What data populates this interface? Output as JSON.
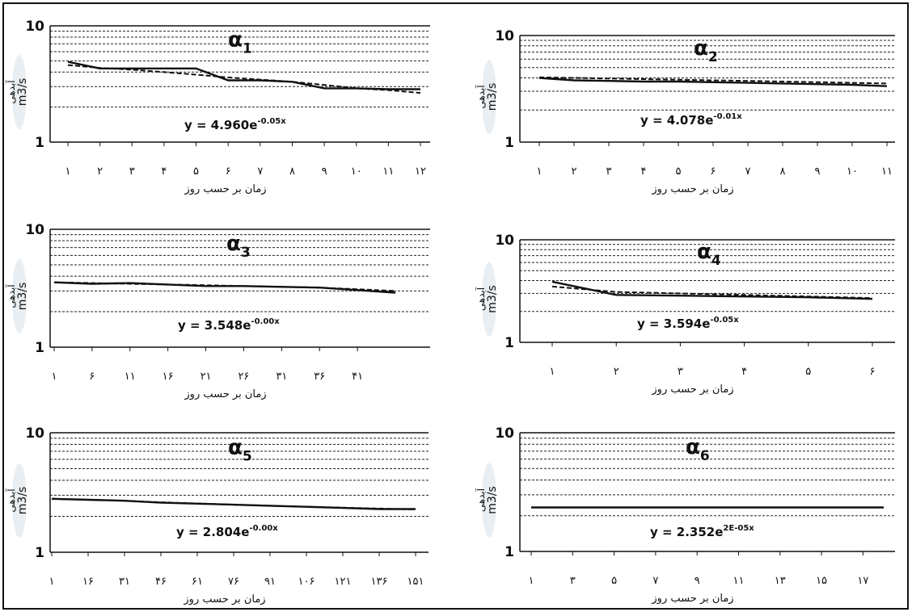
{
  "figure": {
    "colors": {
      "line": "#111111",
      "grid": "#222222",
      "watermark": "#e8eef2"
    }
  },
  "chart_data": [
    {
      "type": "line",
      "title": "α1",
      "ylabel_fa": "آبدهی",
      "ylabel_unit": "m3/s",
      "xlabel": "زمان بر حسب روز",
      "yscale": "log",
      "ylim": [
        1,
        10
      ],
      "ytick_labels": [
        "10",
        "1"
      ],
      "x": [
        1,
        2,
        3,
        4,
        5,
        6,
        7,
        8,
        9,
        10,
        11,
        12
      ],
      "xtick_labels": [
        "۱",
        "۲",
        "۳",
        "۴",
        "۵",
        "۶",
        "۷",
        "۸",
        "۹",
        "۱۰",
        "۱۱",
        "۱۲"
      ],
      "equation": "y = 4.960e",
      "exponent": "-0.05x",
      "series": [
        {
          "style": "solid",
          "values": [
            4.9,
            4.3,
            4.3,
            4.3,
            4.3,
            3.4,
            3.4,
            3.3,
            2.9,
            2.9,
            2.85,
            2.85
          ]
        },
        {
          "style": "dashed",
          "values": [
            4.6,
            4.35,
            4.2,
            4.0,
            3.8,
            3.6,
            3.45,
            3.3,
            3.1,
            2.9,
            2.8,
            2.65
          ]
        }
      ]
    },
    {
      "type": "line",
      "title": "α2",
      "ylabel_fa": "آبدهی",
      "ylabel_unit": "m3/s",
      "xlabel": "زمان بر حسب روز",
      "yscale": "log",
      "ylim": [
        1,
        10
      ],
      "ytick_labels": [
        "10",
        "1"
      ],
      "x": [
        1,
        2,
        3,
        4,
        5,
        6,
        7,
        8,
        9,
        10,
        11
      ],
      "xtick_labels": [
        "۱",
        "۲",
        "۳",
        "۴",
        "۵",
        "۶",
        "۷",
        "۸",
        "۹",
        "۱۰",
        "۱۱"
      ],
      "equation": "y = 4.078e",
      "exponent": "-0.01x",
      "series": [
        {
          "style": "solid",
          "values": [
            4.0,
            3.8,
            3.75,
            3.7,
            3.7,
            3.65,
            3.6,
            3.55,
            3.5,
            3.45,
            3.35
          ]
        },
        {
          "style": "dashed",
          "values": [
            4.05,
            4.0,
            3.95,
            3.9,
            3.85,
            3.8,
            3.75,
            3.7,
            3.65,
            3.6,
            3.55
          ]
        }
      ]
    },
    {
      "type": "line",
      "title": "α3",
      "ylabel_fa": "آبدهی",
      "ylabel_unit": "m3/s",
      "xlabel": "زمان بر حسب روز",
      "yscale": "log",
      "ylim": [
        1,
        10
      ],
      "ytick_labels": [
        "10",
        "1"
      ],
      "x": [
        1,
        6,
        11,
        16,
        21,
        26,
        31,
        36,
        41,
        46
      ],
      "xtick_labels": [
        "۱",
        "۶",
        "۱۱",
        "۱۶",
        "۲۱",
        "۲۶",
        "۳۱",
        "۳۶",
        "۴۱"
      ],
      "equation": "y = 3.548e",
      "exponent": "-0.00x",
      "series": [
        {
          "style": "solid",
          "values": [
            3.55,
            3.45,
            3.5,
            3.4,
            3.3,
            3.3,
            3.25,
            3.2,
            3.05,
            2.9
          ]
        },
        {
          "style": "dashed",
          "values": [
            3.55,
            3.5,
            3.45,
            3.4,
            3.35,
            3.3,
            3.25,
            3.2,
            3.1,
            3.0
          ]
        }
      ]
    },
    {
      "type": "line",
      "title": "α4",
      "ylabel_fa": "آبدهی",
      "ylabel_unit": "m3/s",
      "xlabel": "زمان بر حسب روز",
      "yscale": "log",
      "ylim": [
        1,
        10
      ],
      "ytick_labels": [
        "10",
        "1"
      ],
      "x": [
        1,
        2,
        3,
        4,
        5,
        6
      ],
      "xtick_labels": [
        "۱",
        "۲",
        "۳",
        "۴",
        "۵",
        "۶"
      ],
      "equation": "y = 3.594e",
      "exponent": "-0.05x",
      "series": [
        {
          "style": "solid",
          "values": [
            3.9,
            2.9,
            2.85,
            2.8,
            2.75,
            2.65
          ]
        },
        {
          "style": "dashed",
          "values": [
            3.5,
            3.1,
            3.0,
            2.9,
            2.8,
            2.7
          ]
        }
      ]
    },
    {
      "type": "line",
      "title": "α5",
      "ylabel_fa": "آبدهی",
      "ylabel_unit": "m3/s",
      "xlabel": "زمان بر حسب روز",
      "yscale": "log",
      "ylim": [
        1,
        10
      ],
      "ytick_labels": [
        "10",
        "1"
      ],
      "x": [
        1,
        16,
        31,
        46,
        61,
        76,
        91,
        106,
        121,
        136,
        151
      ],
      "xtick_labels": [
        "۱",
        "۱۶",
        "۳۱",
        "۴۶",
        "۶۱",
        "۷۶",
        "۹۱",
        "۱۰۶",
        "۱۲۱",
        "۱۳۶",
        "۱۵۱"
      ],
      "equation": "y = 2.804e",
      "exponent": "-0.00x",
      "series": [
        {
          "style": "solid",
          "values": [
            2.8,
            2.75,
            2.7,
            2.6,
            2.55,
            2.5,
            2.45,
            2.4,
            2.35,
            2.3,
            2.3
          ]
        },
        {
          "style": "dashed",
          "values": [
            2.8,
            2.75,
            2.7,
            2.62,
            2.56,
            2.5,
            2.45,
            2.4,
            2.36,
            2.32,
            2.28
          ]
        }
      ]
    },
    {
      "type": "line",
      "title": "α6",
      "ylabel_fa": "آبدهی",
      "ylabel_unit": "m3/s",
      "xlabel": "زمان بر حسب روز",
      "yscale": "log",
      "ylim": [
        1,
        10
      ],
      "ytick_labels": [
        "10",
        "1"
      ],
      "x": [
        1,
        3,
        5,
        7,
        9,
        11,
        13,
        15,
        17,
        18
      ],
      "xtick_labels": [
        "۱",
        "۳",
        "۵",
        "۷",
        "۹",
        "۱۱",
        "۱۳",
        "۱۵",
        "۱۷"
      ],
      "equation": "y = 2.352e",
      "exponent": "2E-05x",
      "series": [
        {
          "style": "solid",
          "values": [
            2.35,
            2.35,
            2.35,
            2.35,
            2.35,
            2.35,
            2.35,
            2.35,
            2.35,
            2.35
          ]
        }
      ]
    }
  ]
}
